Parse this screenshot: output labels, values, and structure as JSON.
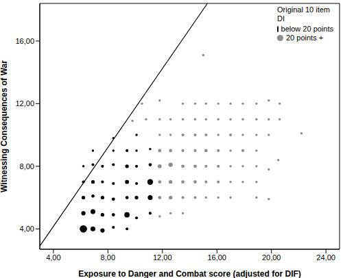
{
  "chart_data": {
    "type": "scatter",
    "x_label": "Exposure to Danger and Combat score (adjusted for DIF)",
    "y_label": "Witnessing Consequences of War",
    "legend_title": "Original 10 item DI",
    "legend": "top-right",
    "grid": false,
    "xlim": [
      3,
      25
    ],
    "ylim": [
      2.7,
      18.4
    ],
    "xticks": [
      {
        "value": 4,
        "label": "4,00"
      },
      {
        "value": 8,
        "label": "8,00"
      },
      {
        "value": 12,
        "label": "12,00"
      },
      {
        "value": 16,
        "label": "16,00"
      },
      {
        "value": 20,
        "label": "20,00"
      },
      {
        "value": 24,
        "label": "24,00"
      }
    ],
    "yticks": [
      {
        "value": 4,
        "label": "4,00"
      },
      {
        "value": 8,
        "label": "8,00"
      },
      {
        "value": 12,
        "label": "12,00"
      },
      {
        "value": 16,
        "label": "16,00"
      }
    ],
    "reference_line": {
      "x": [
        3,
        15.3
      ],
      "y": [
        2.9,
        18.4
      ]
    },
    "series": [
      {
        "name": "below 20 points",
        "color": "#000000",
        "marker": "circle",
        "x": [
          6.2,
          6.9,
          7.6,
          6.2,
          6.9,
          7.6,
          8.4,
          9.4,
          10.1,
          9.4,
          8.4,
          6.2,
          6.9,
          7.6,
          8.4,
          9.4,
          10.1,
          11.1,
          11.1,
          6.2,
          6.9,
          7.6,
          8.4,
          9.4,
          10.1,
          11.1,
          6.2,
          6.9,
          7.6,
          8.4,
          9.4,
          10.1,
          11.1,
          6.9,
          8.4,
          9.4,
          10.1,
          11.1,
          8.4,
          10.1
        ],
        "y": [
          4,
          4,
          3.9,
          5,
          5.1,
          4.9,
          4.9,
          4.9,
          4.7,
          4,
          4.1,
          6,
          6.1,
          6,
          5.9,
          6,
          6,
          6,
          5,
          7,
          7,
          7,
          6.9,
          7,
          6.9,
          7,
          8,
          8.1,
          8,
          8.1,
          8,
          8,
          8.1,
          9,
          9,
          9,
          9,
          9.1,
          9.8,
          10
        ],
        "sizes": [
          20,
          8,
          6,
          6,
          8,
          4,
          3,
          10,
          2,
          2,
          2,
          4,
          3,
          4,
          3,
          3,
          4,
          8,
          2,
          2,
          4,
          2,
          2,
          5,
          2,
          12,
          1,
          2,
          2,
          2,
          4,
          2,
          3,
          1,
          1,
          2,
          1,
          1,
          1,
          1
        ]
      },
      {
        "name": "20 points +",
        "color": "#8c8c8c",
        "marker": "circle",
        "x": [
          11.8,
          12.6,
          13.5,
          11.8,
          12.6,
          13.5,
          14.4,
          15.2,
          16.1,
          17.0,
          18.9,
          11.8,
          12.6,
          13.5,
          14.4,
          15.2,
          16.1,
          17.0,
          17.9,
          18.9,
          11.8,
          12.6,
          13.5,
          14.4,
          15.2,
          16.1,
          17.0,
          17.9,
          18.9,
          19.8,
          11.8,
          12.6,
          13.5,
          14.4,
          15.2,
          16.1,
          17.0,
          17.9,
          18.9,
          11.8,
          12.6,
          13.5,
          14.4,
          15.2,
          16.1,
          17.0,
          17.9,
          18.9,
          19.8,
          9.8,
          10.8,
          11.8,
          12.6,
          13.5,
          14.4,
          15.2,
          16.1,
          17.0,
          17.9,
          18.9,
          19.8,
          20.6,
          10.5,
          11.8,
          13.5,
          14.4,
          15.2,
          16.1,
          17.0,
          17.9,
          18.9,
          19.8,
          20.6,
          22.2,
          20.5,
          19.8,
          15.0
        ],
        "y": [
          4.8,
          5,
          5,
          6,
          6,
          6,
          6,
          6,
          6,
          6,
          6,
          7,
          7,
          7,
          7,
          7,
          7,
          7,
          7,
          7,
          8,
          8.1,
          8,
          8,
          8,
          8,
          8,
          8,
          8,
          7.8,
          9,
          9,
          9,
          9,
          9,
          9,
          9,
          9,
          9,
          10,
          10,
          10,
          10,
          10,
          10,
          10,
          10,
          10,
          10,
          10.9,
          11,
          11,
          11,
          11,
          11,
          11,
          11,
          11,
          11,
          11,
          11,
          11,
          12,
          12.2,
          12,
          12,
          12,
          12,
          12,
          12,
          12,
          12.2,
          12,
          10.1,
          8.4,
          5.9,
          15.1
        ],
        "sizes": [
          1,
          1,
          1,
          3,
          4,
          2,
          2,
          1,
          1,
          1,
          1,
          3,
          4,
          3,
          3,
          2,
          2,
          1,
          1,
          1,
          5,
          6,
          3,
          3,
          2,
          2,
          1,
          1,
          1,
          1,
          3,
          3,
          2,
          2,
          3,
          2,
          1,
          2,
          1,
          1,
          1,
          2,
          2,
          2,
          1,
          2,
          1,
          1,
          1,
          1,
          1,
          1,
          1,
          1,
          1,
          1,
          1,
          1,
          1,
          1,
          1,
          1,
          1,
          1,
          1,
          1,
          1,
          1,
          1,
          1,
          1,
          1,
          1,
          1,
          1,
          1,
          1
        ]
      }
    ]
  }
}
